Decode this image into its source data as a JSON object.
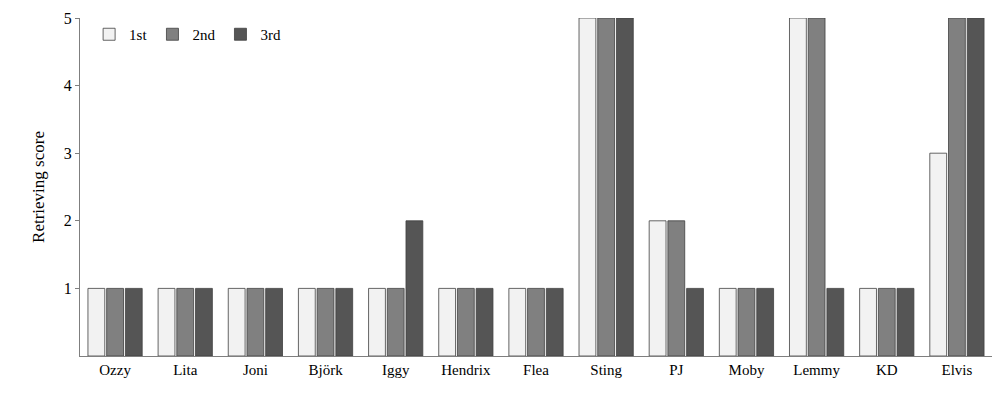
{
  "chart_data": {
    "type": "bar",
    "y_label": "Retrieving score",
    "categories": [
      "Ozzy",
      "Lita",
      "Joni",
      "Björk",
      "Iggy",
      "Hendrix",
      "Flea",
      "Sting",
      "PJ",
      "Moby",
      "Lemmy",
      "KD",
      "Elvis"
    ],
    "series": [
      {
        "name": "1st",
        "color": "#f2f2f2",
        "values": [
          1,
          1,
          1,
          1,
          1,
          1,
          1,
          5,
          2,
          1,
          5,
          1,
          3
        ]
      },
      {
        "name": "2nd",
        "color": "#808080",
        "values": [
          1,
          1,
          1,
          1,
          1,
          1,
          1,
          5,
          2,
          1,
          5,
          1,
          5
        ]
      },
      {
        "name": "3rd",
        "color": "#555555",
        "values": [
          1,
          1,
          1,
          1,
          2,
          1,
          1,
          5,
          1,
          1,
          1,
          1,
          5
        ]
      }
    ],
    "ylim": [
      0,
      5
    ],
    "yticks": [
      1,
      2,
      3,
      4,
      5
    ],
    "grid": false,
    "legend": "top left"
  }
}
